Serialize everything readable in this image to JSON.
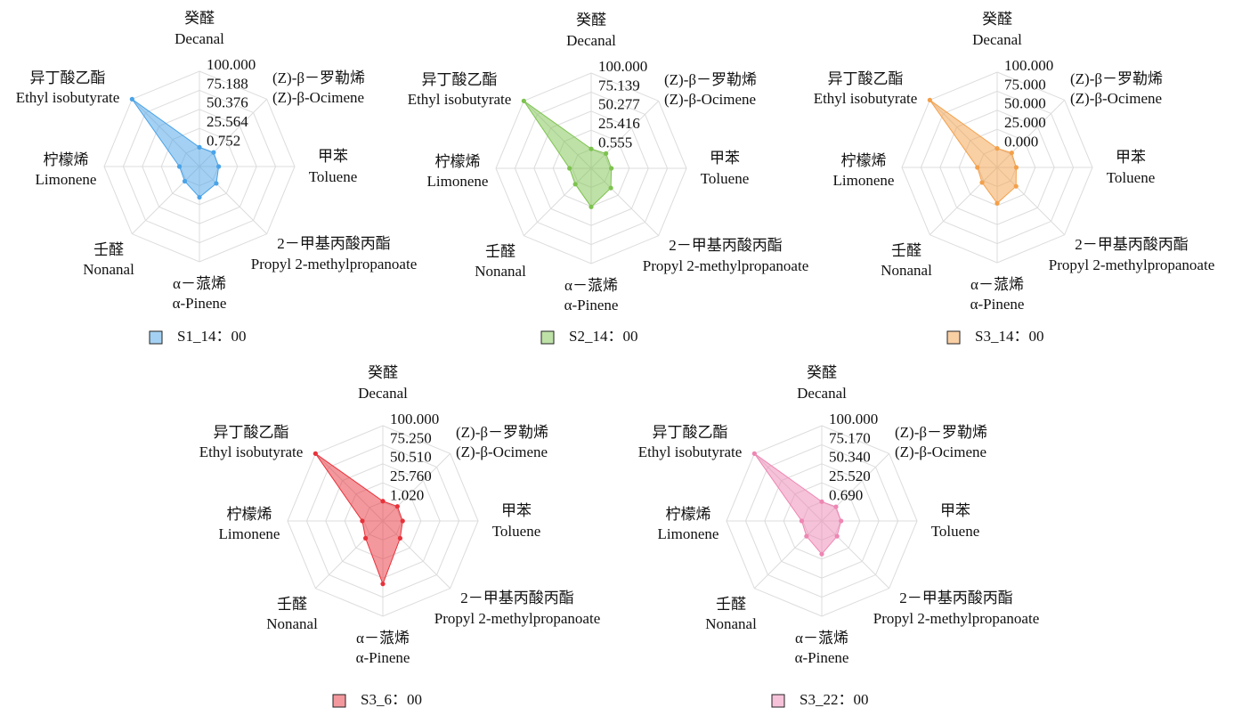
{
  "chart_data": [
    {
      "type": "radar",
      "categories": [
        "Decanal",
        "(Z)-β-Ocimene",
        "Toluene",
        "Propyl 2-methylpropanoate",
        "α-Pinene",
        "Nonanal",
        "Limonene",
        "Ethyl isobutyrate"
      ],
      "categories_zh": [
        "癸醛",
        "(Z)-β－罗勒烯",
        "甲苯",
        "2－甲基丙酸丙酯",
        "α－蒎烯",
        "壬醛",
        "柠檬烯",
        "异丁酸乙酯"
      ],
      "series": [
        {
          "name": "S1_14：00",
          "color": "#4aa3e8",
          "values": [
            1,
            2,
            1,
            7,
            16,
            3,
            2,
            100
          ]
        }
      ],
      "rlim": [
        -24.06,
        100
      ],
      "rticks": [
        0.752,
        25.564,
        50.376,
        75.188,
        {
          "value": 100,
          "label": "100.000"
        }
      ],
      "grid": true
    },
    {
      "type": "radar",
      "categories": [
        "Decanal",
        "(Z)-β-Ocimene",
        "Toluene",
        "Propyl 2-methylpropanoate",
        "α-Pinene",
        "Nonanal",
        "Limonene",
        "Ethyl isobutyrate"
      ],
      "categories_zh": [
        "癸醛",
        "(Z)-β－罗勒烯",
        "甲苯",
        "2－甲基丙酸丙酯",
        "α－蒎烯",
        "壬醛",
        "柠檬烯",
        "异丁酸乙酯"
      ],
      "series": [
        {
          "name": "S2_14：00",
          "color": "#7dc34f",
          "values": [
            1,
            3,
            2,
            12,
            26,
            5,
            4,
            100
          ]
        }
      ],
      "rlim": [
        -24.306,
        100
      ],
      "rticks": [
        0.555,
        25.416,
        50.277,
        75.139,
        {
          "value": 100,
          "label": "100.000"
        }
      ],
      "grid": true
    },
    {
      "type": "radar",
      "categories": [
        "Decanal",
        "(Z)-β-Ocimene",
        "Toluene",
        "Propyl 2-methylpropanoate",
        "α-Pinene",
        "Nonanal",
        "Limonene",
        "Ethyl isobutyrate"
      ],
      "categories_zh": [
        "癸醛",
        "(Z)-β－罗勒烯",
        "甲苯",
        "2－甲基丙酸丙酯",
        "α－蒎烯",
        "壬醛",
        "柠檬烯",
        "异丁酸乙酯"
      ],
      "series": [
        {
          "name": "S3_14：00",
          "color": "#f3a04a",
          "values": [
            0,
            2,
            0,
            10,
            22,
            3,
            1,
            100
          ]
        }
      ],
      "rlim": [
        -25,
        100
      ],
      "rticks": [
        {
          "value": 0,
          "label": "0.000"
        },
        {
          "value": 25,
          "label": "25.000"
        },
        {
          "value": 50,
          "label": "50.000"
        },
        {
          "value": 75,
          "label": "75.000"
        },
        {
          "value": 100,
          "label": "100.000"
        }
      ],
      "grid": true
    },
    {
      "type": "radar",
      "categories": [
        "Decanal",
        "(Z)-β-Ocimene",
        "Toluene",
        "Propyl 2-methylpropanoate",
        "α-Pinene",
        "Nonanal",
        "Limonene",
        "Ethyl isobutyrate"
      ],
      "categories_zh": [
        "癸醛",
        "(Z)-β－罗勒烯",
        "甲苯",
        "2－甲基丙酸丙酯",
        "α－蒎烯",
        "壬醛",
        "柠檬烯",
        "异丁酸乙酯"
      ],
      "series": [
        {
          "name": "S3_6：00",
          "color": "#e8323b",
          "values": [
            2,
            3,
            2,
            8,
            58,
            8,
            3,
            100
          ]
        }
      ],
      "rlim": [
        -23.71,
        100
      ],
      "rticks": [
        {
          "value": 1.02,
          "label": "1.020"
        },
        {
          "value": 25.76,
          "label": "25.760"
        },
        {
          "value": 50.51,
          "label": "50.510"
        },
        {
          "value": 75.25,
          "label": "75.250"
        },
        {
          "value": 100,
          "label": "100.000"
        }
      ],
      "grid": true
    },
    {
      "type": "radar",
      "categories": [
        "Decanal",
        "(Z)-β-Ocimene",
        "Toluene",
        "Propyl 2-methylpropanoate",
        "α-Pinene",
        "Nonanal",
        "Limonene",
        "Ethyl isobutyrate"
      ],
      "categories_zh": [
        "癸醛",
        "(Z)-β－罗勒烯",
        "甲苯",
        "2－甲基丙酸丙酯",
        "α－蒎烯",
        "壬醛",
        "柠檬烯",
        "异丁酸乙酯"
      ],
      "series": [
        {
          "name": "S3_22：00",
          "color": "#ee86b3",
          "values": [
            1,
            2,
            1,
            4,
            19,
            4,
            2,
            100
          ]
        }
      ],
      "rlim": [
        -24.14,
        100
      ],
      "rticks": [
        {
          "value": 0.69,
          "label": "0.690"
        },
        {
          "value": 25.52,
          "label": "25.520"
        },
        {
          "value": 50.34,
          "label": "50.340"
        },
        {
          "value": 75.17,
          "label": "75.170"
        },
        {
          "value": 100,
          "label": "100.000"
        }
      ],
      "grid": true
    }
  ]
}
